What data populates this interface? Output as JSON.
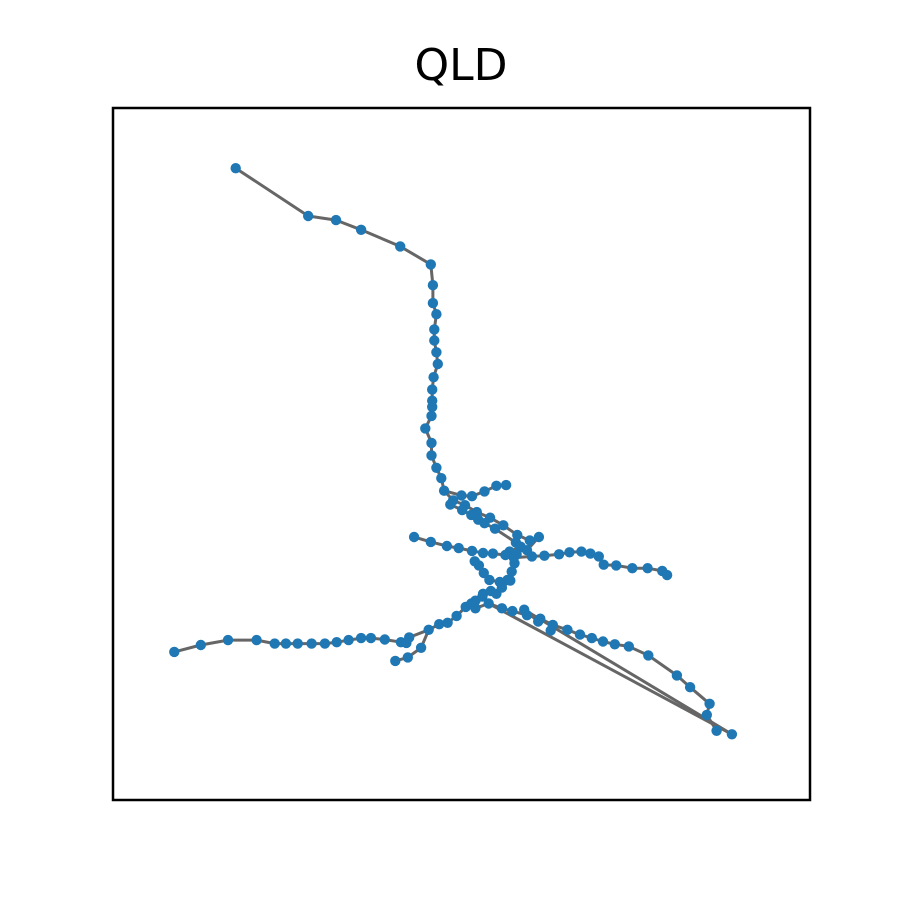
{
  "title": "QLD",
  "colors": {
    "node": "#1f77b4",
    "edge": "#666666",
    "frame": "#000000",
    "background": "#ffffff"
  },
  "chart_data": {
    "type": "network",
    "title": "QLD",
    "xticks": false,
    "yticks": false,
    "grid": false,
    "xlim": [
      0,
      100
    ],
    "ylim": [
      0,
      100
    ],
    "nodes": [
      [
        17.6,
        91.3
      ],
      [
        28.0,
        84.4
      ],
      [
        32.0,
        83.8
      ],
      [
        35.6,
        82.4
      ],
      [
        41.2,
        80.0
      ],
      [
        45.6,
        77.4
      ],
      [
        45.9,
        74.4
      ],
      [
        45.9,
        71.8
      ],
      [
        46.4,
        70.2
      ],
      [
        46.1,
        68.0
      ],
      [
        46.1,
        66.4
      ],
      [
        46.4,
        64.7
      ],
      [
        46.6,
        63.0
      ],
      [
        46.0,
        61.1
      ],
      [
        45.8,
        59.3
      ],
      [
        45.8,
        57.7
      ],
      [
        45.8,
        56.8
      ],
      [
        45.7,
        55.5
      ],
      [
        44.8,
        53.7
      ],
      [
        45.7,
        51.6
      ],
      [
        45.7,
        49.8
      ],
      [
        46.4,
        48.0
      ],
      [
        47.1,
        46.5
      ],
      [
        47.5,
        44.7
      ],
      [
        48.8,
        43.3
      ],
      [
        50.5,
        42.6
      ],
      [
        52.2,
        41.6
      ],
      [
        54.1,
        40.8
      ],
      [
        56.0,
        39.7
      ],
      [
        58.0,
        38.3
      ],
      [
        59.8,
        37.5
      ],
      [
        50.0,
        44.0
      ],
      [
        51.5,
        43.9
      ],
      [
        53.3,
        44.6
      ],
      [
        55.0,
        45.4
      ],
      [
        56.4,
        45.5
      ],
      [
        48.4,
        42.7
      ],
      [
        50.1,
        41.9
      ],
      [
        51.4,
        41.2
      ],
      [
        52.4,
        40.5
      ],
      [
        53.3,
        40.0
      ],
      [
        54.8,
        39.2
      ],
      [
        57.8,
        37.2
      ],
      [
        58.5,
        36.6
      ],
      [
        57.9,
        35.5
      ],
      [
        57.6,
        34.2
      ],
      [
        57.2,
        33.0
      ],
      [
        56.6,
        31.8
      ],
      [
        55.5,
        31.5
      ],
      [
        54.0,
        31.8
      ],
      [
        53.2,
        32.8
      ],
      [
        52.5,
        33.9
      ],
      [
        51.9,
        34.5
      ],
      [
        56.9,
        35.9
      ],
      [
        59.4,
        36.1
      ],
      [
        61.1,
        38.0
      ],
      [
        43.2,
        38.0
      ],
      [
        45.6,
        37.3
      ],
      [
        47.9,
        36.7
      ],
      [
        49.6,
        36.4
      ],
      [
        51.5,
        36.0
      ],
      [
        53.1,
        35.7
      ],
      [
        54.5,
        35.6
      ],
      [
        56.3,
        35.4
      ],
      [
        57.5,
        35.0
      ],
      [
        60.1,
        35.2
      ],
      [
        61.9,
        35.3
      ],
      [
        64.0,
        35.5
      ],
      [
        65.5,
        35.8
      ],
      [
        67.2,
        35.9
      ],
      [
        68.5,
        35.6
      ],
      [
        69.7,
        35.2
      ],
      [
        70.4,
        34.0
      ],
      [
        72.2,
        33.9
      ],
      [
        74.5,
        33.5
      ],
      [
        76.7,
        33.5
      ],
      [
        78.8,
        33.1
      ],
      [
        79.5,
        32.5
      ],
      [
        8.8,
        21.4
      ],
      [
        12.6,
        22.4
      ],
      [
        16.5,
        23.1
      ],
      [
        20.6,
        23.1
      ],
      [
        23.2,
        22.6
      ],
      [
        24.8,
        22.6
      ],
      [
        26.5,
        22.6
      ],
      [
        28.5,
        22.6
      ],
      [
        30.4,
        22.6
      ],
      [
        32.1,
        22.8
      ],
      [
        33.8,
        23.1
      ],
      [
        35.6,
        23.4
      ],
      [
        37.0,
        23.4
      ],
      [
        39.0,
        23.2
      ],
      [
        41.3,
        22.8
      ],
      [
        42.1,
        22.7
      ],
      [
        42.5,
        23.5
      ],
      [
        45.3,
        24.6
      ],
      [
        46.8,
        25.4
      ],
      [
        48.0,
        25.6
      ],
      [
        49.3,
        26.6
      ],
      [
        50.6,
        27.9
      ],
      [
        52.0,
        28.8
      ],
      [
        53.0,
        29.4
      ],
      [
        40.5,
        20.1
      ],
      [
        42.3,
        20.6
      ],
      [
        44.2,
        22.0
      ],
      [
        53.1,
        29.8
      ],
      [
        54.2,
        30.2
      ],
      [
        55.0,
        29.8
      ],
      [
        55.8,
        30.7
      ],
      [
        57.0,
        31.7
      ],
      [
        51.4,
        28.4
      ],
      [
        52.0,
        27.7
      ],
      [
        53.9,
        28.4
      ],
      [
        55.8,
        27.7
      ],
      [
        57.3,
        27.3
      ],
      [
        59.4,
        26.7
      ],
      [
        61.3,
        26.2
      ],
      [
        63.1,
        25.3
      ],
      [
        65.2,
        24.6
      ],
      [
        67.0,
        23.9
      ],
      [
        68.7,
        23.4
      ],
      [
        70.3,
        22.9
      ],
      [
        72.0,
        22.5
      ],
      [
        74.0,
        22.2
      ],
      [
        76.8,
        20.9
      ],
      [
        80.9,
        18.0
      ],
      [
        82.8,
        16.3
      ],
      [
        85.6,
        13.9
      ],
      [
        85.2,
        12.3
      ],
      [
        86.6,
        10.0
      ],
      [
        88.8,
        9.5
      ],
      [
        59.0,
        27.5
      ],
      [
        61.0,
        25.8
      ],
      [
        62.8,
        24.5
      ]
    ],
    "edges": [
      [
        0,
        1
      ],
      [
        1,
        2
      ],
      [
        2,
        3
      ],
      [
        3,
        4
      ],
      [
        4,
        5
      ],
      [
        5,
        6
      ],
      [
        6,
        7
      ],
      [
        7,
        8
      ],
      [
        8,
        9
      ],
      [
        9,
        10
      ],
      [
        10,
        11
      ],
      [
        11,
        12
      ],
      [
        12,
        13
      ],
      [
        13,
        14
      ],
      [
        14,
        15
      ],
      [
        15,
        16
      ],
      [
        16,
        17
      ],
      [
        17,
        18
      ],
      [
        18,
        19
      ],
      [
        19,
        20
      ],
      [
        20,
        21
      ],
      [
        21,
        22
      ],
      [
        22,
        23
      ],
      [
        23,
        24
      ],
      [
        24,
        25
      ],
      [
        25,
        26
      ],
      [
        26,
        27
      ],
      [
        27,
        28
      ],
      [
        28,
        29
      ],
      [
        29,
        30
      ],
      [
        23,
        31
      ],
      [
        31,
        32
      ],
      [
        32,
        33
      ],
      [
        33,
        34
      ],
      [
        34,
        35
      ],
      [
        24,
        36
      ],
      [
        36,
        37
      ],
      [
        37,
        38
      ],
      [
        38,
        39
      ],
      [
        39,
        40
      ],
      [
        40,
        41
      ],
      [
        41,
        42
      ],
      [
        42,
        43
      ],
      [
        43,
        44
      ],
      [
        44,
        45
      ],
      [
        45,
        46
      ],
      [
        46,
        47
      ],
      [
        47,
        48
      ],
      [
        48,
        49
      ],
      [
        49,
        50
      ],
      [
        50,
        51
      ],
      [
        51,
        52
      ],
      [
        43,
        53
      ],
      [
        53,
        54
      ],
      [
        54,
        55
      ],
      [
        56,
        57
      ],
      [
        57,
        58
      ],
      [
        58,
        59
      ],
      [
        59,
        60
      ],
      [
        60,
        61
      ],
      [
        61,
        62
      ],
      [
        62,
        63
      ],
      [
        63,
        64
      ],
      [
        64,
        65
      ],
      [
        65,
        66
      ],
      [
        66,
        67
      ],
      [
        67,
        68
      ],
      [
        68,
        69
      ],
      [
        69,
        70
      ],
      [
        70,
        71
      ],
      [
        71,
        72
      ],
      [
        72,
        73
      ],
      [
        73,
        74
      ],
      [
        74,
        75
      ],
      [
        75,
        76
      ],
      [
        76,
        77
      ],
      [
        78,
        79
      ],
      [
        79,
        80
      ],
      [
        80,
        81
      ],
      [
        81,
        82
      ],
      [
        82,
        83
      ],
      [
        83,
        84
      ],
      [
        84,
        85
      ],
      [
        85,
        86
      ],
      [
        86,
        87
      ],
      [
        87,
        88
      ],
      [
        88,
        89
      ],
      [
        89,
        90
      ],
      [
        90,
        91
      ],
      [
        91,
        92
      ],
      [
        92,
        93
      ],
      [
        93,
        94
      ],
      [
        94,
        95
      ],
      [
        95,
        96
      ],
      [
        96,
        97
      ],
      [
        97,
        98
      ],
      [
        98,
        99
      ],
      [
        99,
        100
      ],
      [
        100,
        101
      ],
      [
        102,
        103
      ],
      [
        103,
        104
      ],
      [
        104,
        95
      ],
      [
        101,
        105
      ],
      [
        105,
        106
      ],
      [
        106,
        107
      ],
      [
        107,
        108
      ],
      [
        108,
        109
      ],
      [
        101,
        110
      ],
      [
        110,
        111
      ],
      [
        111,
        112
      ],
      [
        112,
        113
      ],
      [
        113,
        114
      ],
      [
        114,
        115
      ],
      [
        115,
        116
      ],
      [
        116,
        117
      ],
      [
        117,
        118
      ],
      [
        118,
        119
      ],
      [
        119,
        120
      ],
      [
        120,
        121
      ],
      [
        121,
        122
      ],
      [
        122,
        123
      ],
      [
        123,
        124
      ],
      [
        124,
        125
      ],
      [
        125,
        126
      ],
      [
        126,
        127
      ],
      [
        127,
        128
      ],
      [
        128,
        129
      ],
      [
        112,
        130
      ],
      [
        130,
        131
      ],
      [
        131,
        132
      ]
    ]
  }
}
